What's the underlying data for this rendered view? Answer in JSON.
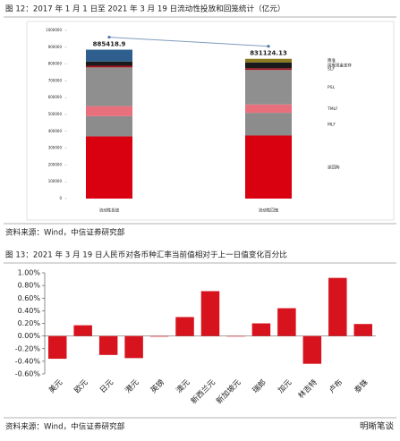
{
  "chart_data": [
    {
      "type": "stacked_bar",
      "title": "图 12：2017 年 1 月 1 日至 2021 年 3 月 19 日流动性投放和回笼统计（亿元）",
      "categories": [
        "流动性投放",
        "流动性回笼"
      ],
      "series": [
        {
          "name": "逆回购",
          "color": "#d9000f",
          "values": [
            370000,
            375000
          ]
        },
        {
          "name": "MLF",
          "color": "#8c8c8c",
          "values": [
            120000,
            135000
          ]
        },
        {
          "name": "TMLF",
          "color": "#e8707c",
          "values": [
            60000,
            50000
          ]
        },
        {
          "name": "PSL",
          "color": "#8f8f8f",
          "values": [
            230000,
            205000
          ]
        },
        {
          "name": "SLF",
          "color": "#a3121c",
          "values": [
            10000,
            10000
          ]
        },
        {
          "name": "国库现金定存",
          "color": "#1a1a1a",
          "values": [
            25000,
            35000
          ]
        },
        {
          "name": "降准",
          "colors": [
            "#2e5f8e",
            "#8c7a1e"
          ],
          "values": [
            70418.9,
            21124.13
          ]
        }
      ],
      "totals": [
        885418.9,
        831124.13
      ],
      "ylim": [
        0,
        1000000
      ],
      "yticks": [
        0,
        100000,
        200000,
        300000,
        400000,
        500000,
        600000,
        700000,
        800000,
        900000,
        1000000
      ],
      "source": "资料来源：Wind，中信证券研究部"
    },
    {
      "type": "bar",
      "title": "图 13：2021 年 3 月 19 日人民币对各币种汇率当前值相对于上一日值变化百分比",
      "categories": [
        "美元",
        "欧元",
        "日元",
        "港元",
        "英镑",
        "澳元",
        "新西兰元",
        "新加坡元",
        "瑞郎",
        "加元",
        "林吉特",
        "卢布",
        "泰铢"
      ],
      "values": [
        -0.36,
        0.17,
        -0.3,
        -0.35,
        -0.01,
        0.3,
        0.71,
        0,
        0.2,
        0.44,
        -0.44,
        0.92,
        0.19
      ],
      "color": "#d7141e",
      "ylim": [
        -0.6,
        1.0
      ],
      "yticks": [
        {
          "value": -0.6,
          "label": "-0.60%"
        },
        {
          "value": -0.4,
          "label": "-0.40%"
        },
        {
          "value": -0.2,
          "label": "-0.20%"
        },
        {
          "value": 0,
          "label": "0.00%"
        },
        {
          "value": 0.2,
          "label": "0.20%"
        },
        {
          "value": 0.4,
          "label": "0.40%"
        },
        {
          "value": 0.6,
          "label": "0.60%"
        },
        {
          "value": 0.8,
          "label": "0.80%"
        },
        {
          "value": 1.0,
          "label": "1.00%"
        }
      ],
      "source": "资料来源：Wind，中信证券研究部"
    }
  ],
  "watermark": "明晰笔谈"
}
